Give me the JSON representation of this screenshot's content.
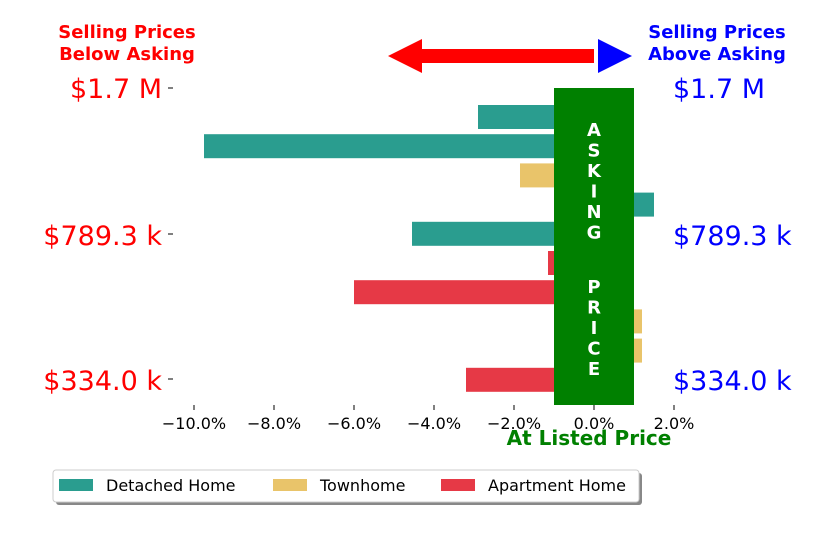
{
  "chart_data": {
    "type": "bar",
    "orientation": "horizontal",
    "header_left": [
      "Selling Prices",
      "Below Asking"
    ],
    "header_right": [
      "Selling Prices",
      "Above Asking"
    ],
    "price_labels_left": [
      "$1.7 M",
      "$789.3 k",
      "$334.0 k"
    ],
    "price_labels_right": [
      "$1.7 M",
      "$789.3 k",
      "$334.0 k"
    ],
    "xlabel": "At Listed Price",
    "xlim": [
      -10.5,
      2.0
    ],
    "xticks": [
      -10,
      -8,
      -6,
      -4,
      -2,
      0,
      2
    ],
    "xtick_labels": [
      "−10.0%",
      "−8.0%",
      "−6.0%",
      "−4.0%",
      "−2.0%",
      "0.0%",
      "2.0%"
    ],
    "asking_band_text": "ASKING PRICE",
    "asking_band_range": [
      -1.0,
      1.0
    ],
    "series": [
      {
        "name": "Detached Home",
        "color": "#2a9d8f"
      },
      {
        "name": "Townhome",
        "color": "#e9c46a"
      },
      {
        "name": "Apartment Home",
        "color": "#e63946"
      }
    ],
    "bars": [
      {
        "series": 0,
        "value": -2.9
      },
      {
        "series": 0,
        "value": -9.75
      },
      {
        "series": 1,
        "value": -1.85
      },
      {
        "series": 0,
        "value": 1.5
      },
      {
        "series": 0,
        "value": -4.55
      },
      {
        "series": 2,
        "value": -1.15
      },
      {
        "series": 2,
        "value": -6.0
      },
      {
        "series": 1,
        "value": 1.2
      },
      {
        "series": 1,
        "value": 1.2
      },
      {
        "series": 2,
        "value": -3.2
      }
    ],
    "legend_placement": "bottom-left",
    "colors": {
      "below": "#ff0000",
      "above": "#0000ff",
      "asking": "#008000"
    }
  }
}
